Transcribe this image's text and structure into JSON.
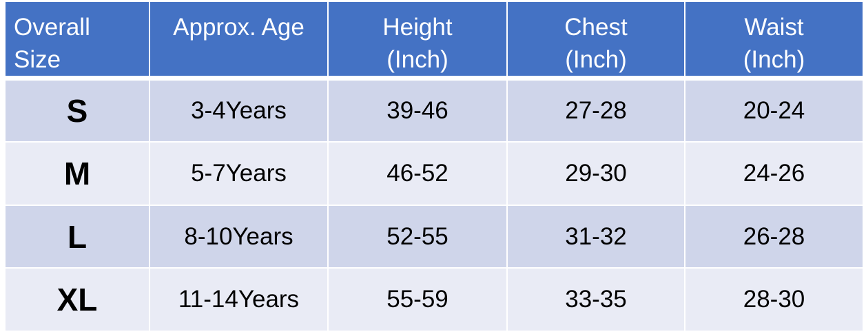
{
  "table": {
    "header": [
      [
        "Overall",
        "Size"
      ],
      [
        "Approx. Age"
      ],
      [
        "Height",
        "(Inch)"
      ],
      [
        "Chest",
        "(Inch)"
      ],
      [
        "Waist",
        "(Inch)"
      ]
    ],
    "rows": [
      [
        "S",
        "3-4Years",
        "39-46",
        "27-28",
        "20-24"
      ],
      [
        "M",
        "5-7Years",
        "46-52",
        "29-30",
        "24-26"
      ],
      [
        "L",
        "8-10Years",
        "52-55",
        "31-32",
        "26-28"
      ],
      [
        "XL",
        "11-14Years",
        "55-59",
        "33-35",
        "28-30"
      ]
    ]
  }
}
